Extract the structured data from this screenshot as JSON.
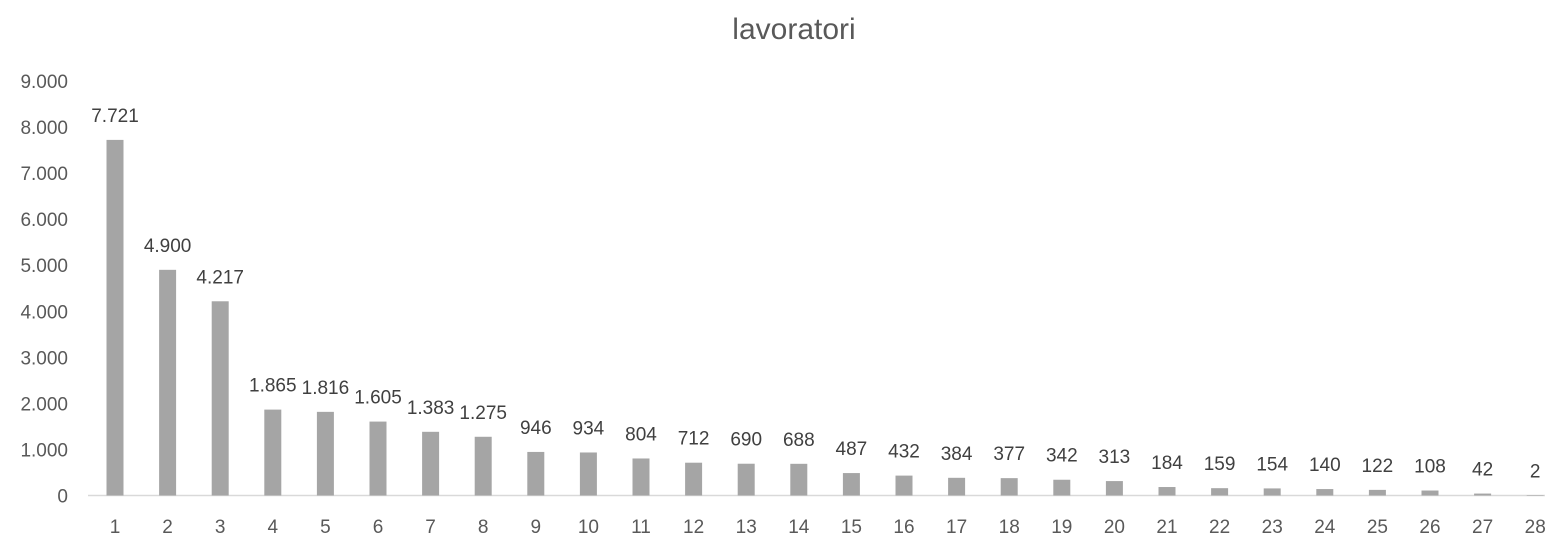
{
  "chart_data": {
    "type": "bar",
    "title": "lavoratori",
    "categories": [
      "1",
      "2",
      "3",
      "4",
      "5",
      "6",
      "7",
      "8",
      "9",
      "10",
      "11",
      "12",
      "13",
      "14",
      "15",
      "16",
      "17",
      "18",
      "19",
      "20",
      "21",
      "22",
      "23",
      "24",
      "25",
      "26",
      "27",
      "28"
    ],
    "values": [
      7721,
      4900,
      4217,
      1865,
      1816,
      1605,
      1383,
      1275,
      946,
      934,
      804,
      712,
      690,
      688,
      487,
      432,
      384,
      377,
      342,
      313,
      184,
      159,
      154,
      140,
      122,
      108,
      42,
      2
    ],
    "value_labels": [
      "7.721",
      "4.900",
      "4.217",
      "1.865",
      "1.816",
      "1.605",
      "1.383",
      "1.275",
      "946",
      "934",
      "804",
      "712",
      "690",
      "688",
      "487",
      "432",
      "384",
      "377",
      "342",
      "313",
      "184",
      "159",
      "154",
      "140",
      "122",
      "108",
      "42",
      "2"
    ],
    "y_ticks": [
      "0",
      "1.000",
      "2.000",
      "3.000",
      "4.000",
      "5.000",
      "6.000",
      "7.000",
      "8.000",
      "9.000"
    ],
    "ylim": [
      0,
      9000
    ],
    "xlabel": "",
    "ylabel": "",
    "grid": false,
    "legend": "none",
    "bar_color": "#a5a5a5",
    "axis_color": "#d9d9d9"
  }
}
